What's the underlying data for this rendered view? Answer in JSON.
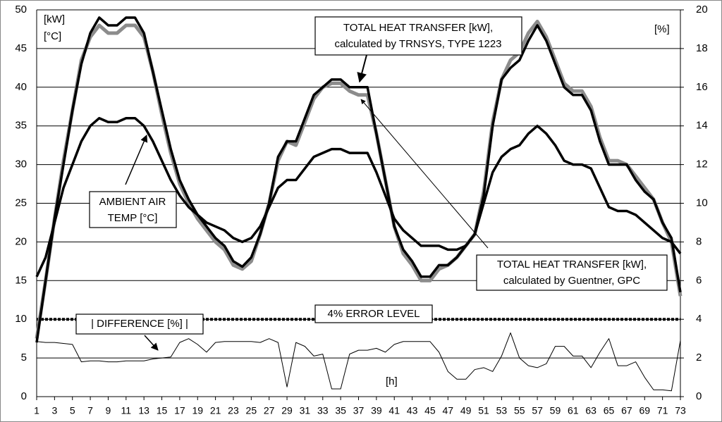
{
  "chart_data": {
    "type": "line",
    "axis_labels": {
      "y_units": [
        "[kW]",
        "[°C]"
      ],
      "y2_units": "[%]",
      "x_units": "[h]"
    },
    "x": [
      1,
      2,
      3,
      4,
      5,
      6,
      7,
      8,
      9,
      10,
      11,
      12,
      13,
      14,
      15,
      16,
      17,
      18,
      19,
      20,
      21,
      22,
      23,
      24,
      25,
      26,
      27,
      28,
      29,
      30,
      31,
      32,
      33,
      34,
      35,
      36,
      37,
      38,
      39,
      40,
      41,
      42,
      43,
      44,
      45,
      46,
      47,
      48,
      49,
      50,
      51,
      52,
      53,
      54,
      55,
      56,
      57,
      58,
      59,
      60,
      61,
      62,
      63,
      64,
      65,
      66,
      67,
      68,
      69,
      70,
      71,
      72,
      73
    ],
    "xlim": [
      1,
      73
    ],
    "xticks": [
      1,
      3,
      5,
      7,
      9,
      11,
      13,
      15,
      17,
      19,
      21,
      23,
      25,
      27,
      29,
      31,
      33,
      35,
      37,
      39,
      41,
      43,
      45,
      47,
      49,
      51,
      53,
      55,
      57,
      59,
      61,
      63,
      65,
      67,
      69,
      71,
      73
    ],
    "ylim": [
      0,
      50
    ],
    "yticks": [
      0,
      5,
      10,
      15,
      20,
      25,
      30,
      35,
      40,
      45,
      50
    ],
    "y2lim": [
      0,
      20
    ],
    "y2ticks": [
      0,
      2,
      4,
      6,
      8,
      10,
      12,
      14,
      16,
      18,
      20
    ],
    "grid": true,
    "series": [
      {
        "name": [
          "TOTAL HEAT TRANSFER [kW],",
          "calculated by TRNSYS, TYPE 1223"
        ],
        "color": "#000000",
        "values": [
          7,
          15,
          23,
          30,
          37,
          43,
          47,
          49,
          48,
          48,
          49,
          49,
          47,
          42,
          37,
          32,
          28,
          25.5,
          23.5,
          22,
          20.5,
          19.5,
          17.5,
          16.8,
          18,
          21,
          25,
          31,
          33,
          33,
          36,
          39,
          40,
          41,
          41,
          40,
          40,
          40,
          34,
          28,
          22,
          19,
          17.5,
          15.5,
          15.5,
          17,
          17,
          18,
          19.5,
          21,
          26,
          35,
          41,
          42.5,
          43.5,
          46,
          48,
          46,
          43,
          40,
          39,
          39,
          37,
          33,
          30,
          30,
          30,
          28,
          26.5,
          25.5,
          22.5,
          20.5,
          13.5
        ]
      },
      {
        "name": [
          "TOTAL HEAT TRANSFER [kW],",
          "calculated by Guentner, GPC"
        ],
        "color": "#8c8c8c",
        "values": [
          7.5,
          15,
          23,
          30.5,
          37,
          43.5,
          46.5,
          48,
          47,
          47,
          48,
          48,
          46.5,
          42,
          36.5,
          31.5,
          27.5,
          25,
          23,
          21.5,
          20,
          19,
          17,
          16.5,
          17.5,
          21,
          25,
          30.5,
          33,
          32.5,
          35.5,
          38.5,
          40,
          40.5,
          40.5,
          39.5,
          39,
          39,
          34,
          28,
          22,
          18.5,
          17,
          15,
          15,
          16.5,
          17,
          18,
          19.5,
          21,
          26.5,
          35.5,
          41,
          43.5,
          44.5,
          47,
          48.5,
          46.5,
          43.5,
          40.5,
          39.5,
          39.5,
          37.5,
          33.5,
          30.5,
          30.5,
          30,
          28.5,
          27,
          25.5,
          22.5,
          20,
          13
        ]
      },
      {
        "name": [
          "AMBIENT AIR",
          "TEMP [°C]"
        ],
        "color": "#000000",
        "values": [
          15.5,
          18,
          22.5,
          27,
          30,
          33,
          35,
          36,
          35.5,
          35.5,
          36,
          36,
          35,
          33,
          30.5,
          28,
          26,
          24.5,
          23.5,
          22.5,
          22,
          21.5,
          20.5,
          20,
          20.5,
          22,
          24.5,
          27,
          28,
          28,
          29.5,
          31,
          31.5,
          32,
          32,
          31.5,
          31.5,
          31.5,
          29,
          26,
          23,
          21.5,
          20.5,
          19.5,
          19.5,
          19.5,
          19,
          19,
          19.5,
          21,
          25,
          29,
          31,
          32,
          32.5,
          34,
          35,
          34,
          32.5,
          30.5,
          30,
          30,
          29.5,
          27,
          24.5,
          24,
          24,
          23.5,
          22.5,
          21.5,
          20.5,
          20,
          18.5
        ]
      },
      {
        "name": [
          "| DIFFERENCE [%] |"
        ],
        "color": "#000000",
        "axis": "y2",
        "values": [
          2.85,
          2.8,
          2.8,
          2.75,
          2.7,
          1.8,
          1.85,
          1.85,
          1.8,
          1.8,
          1.85,
          1.85,
          1.85,
          1.95,
          2.0,
          2.05,
          2.8,
          3.0,
          2.7,
          2.3,
          2.8,
          2.85,
          2.85,
          2.85,
          2.85,
          2.8,
          3.0,
          2.8,
          0.5,
          2.8,
          2.6,
          2.1,
          2.2,
          0.4,
          0.4,
          2.2,
          2.4,
          2.4,
          2.5,
          2.3,
          2.7,
          2.85,
          2.85,
          2.85,
          2.85,
          2.3,
          1.3,
          0.9,
          0.9,
          1.4,
          1.5,
          1.3,
          2.1,
          3.3,
          2.0,
          1.6,
          1.5,
          1.7,
          2.6,
          2.6,
          2.1,
          2.1,
          1.5,
          2.3,
          3.0,
          1.6,
          1.6,
          1.8,
          1.0,
          0.35,
          0.35,
          0.3,
          2.9
        ]
      }
    ],
    "error_level": {
      "value": 4,
      "axis": "y2",
      "label": "4% ERROR LEVEL"
    }
  }
}
